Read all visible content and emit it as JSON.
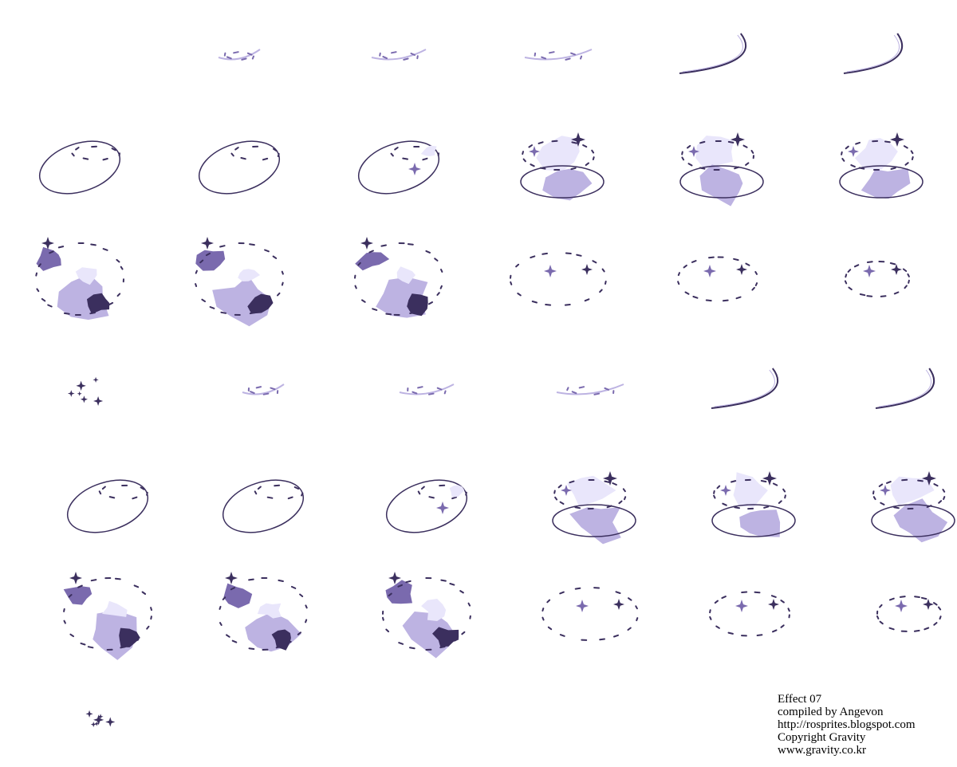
{
  "sheet": {
    "background": "#ffffff",
    "palette": {
      "dark": "#3b2f5e",
      "mid": "#7a6aae",
      "light": "#bdb3e2",
      "pale": "#e9e6fb"
    },
    "frames": [
      {
        "stage": 0,
        "shape": "empty"
      },
      {
        "stage": 1,
        "shape": "faint-wisp"
      },
      {
        "stage": 2,
        "shape": "faint-wisp"
      },
      {
        "stage": 3,
        "shape": "faint-wisp"
      },
      {
        "stage": 4,
        "shape": "thin-arc"
      },
      {
        "stage": 5,
        "shape": "thin-arc"
      },
      {
        "stage": 6,
        "shape": "ellipse-ring"
      },
      {
        "stage": 7,
        "shape": "ellipse-ring"
      },
      {
        "stage": 8,
        "shape": "ring-with-flares"
      },
      {
        "stage": 9,
        "shape": "vortex"
      },
      {
        "stage": 10,
        "shape": "vortex"
      },
      {
        "stage": 11,
        "shape": "vortex"
      },
      {
        "stage": 12,
        "shape": "spiral"
      },
      {
        "stage": 13,
        "shape": "spiral"
      },
      {
        "stage": 14,
        "shape": "spiral"
      },
      {
        "stage": 15,
        "shape": "fading-ring"
      },
      {
        "stage": 16,
        "shape": "fading-ring"
      },
      {
        "stage": 17,
        "shape": "fading-ring"
      },
      {
        "stage": 18,
        "shape": "sparks"
      }
    ]
  },
  "credits": {
    "line1": "Effect 07",
    "line2": "compiled by Angevon",
    "line3": "http://rosprites.blogspot.com",
    "line4": "Copyright Gravity",
    "line5": "www.gravity.co.kr"
  }
}
